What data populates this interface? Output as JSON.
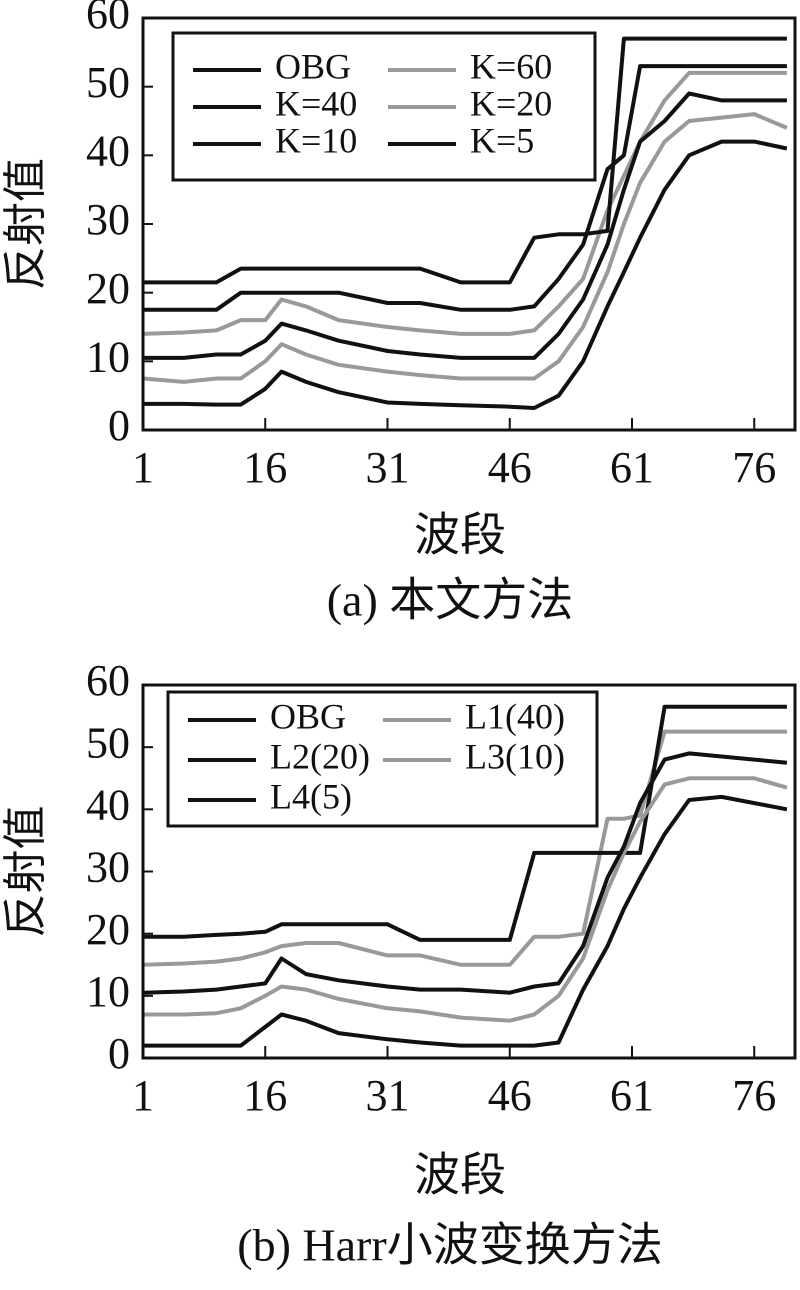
{
  "chart_data": [
    {
      "type": "line",
      "title": "(a) 本文方法",
      "x_label": "波段",
      "y_label": "反射值",
      "x": [
        1,
        6,
        10,
        13,
        16,
        18,
        21,
        25,
        31,
        35,
        40,
        46,
        49,
        52,
        55,
        58,
        60,
        62,
        65,
        68,
        72,
        76,
        80
      ],
      "xlim": [
        1,
        81
      ],
      "ylim": [
        0,
        60
      ],
      "xticks": [
        1,
        16,
        31,
        46,
        61,
        76
      ],
      "yticks": [
        0,
        10,
        20,
        30,
        40,
        50,
        60
      ],
      "series": [
        {
          "name": "OBG",
          "color": "#111111",
          "values": [
            3.8,
            3.8,
            3.7,
            3.7,
            6,
            8.5,
            7,
            5.5,
            4,
            3.8,
            3.6,
            3.4,
            3.2,
            5,
            10,
            18,
            23,
            28,
            35,
            40,
            42,
            42,
            41
          ]
        },
        {
          "name": "K=60",
          "color": "#999999",
          "values": [
            14,
            14.2,
            14.5,
            16,
            16,
            19,
            18,
            16,
            15,
            14.5,
            14,
            14,
            14.5,
            18,
            22,
            32,
            37,
            42,
            48,
            52,
            52,
            52,
            52
          ]
        },
        {
          "name": "K=40",
          "color": "#111111",
          "values": [
            10.5,
            10.5,
            11,
            11,
            13,
            15.5,
            14.5,
            13,
            11.5,
            11,
            10.5,
            10.5,
            10.5,
            14,
            19,
            27,
            35,
            42,
            45,
            49,
            48,
            48,
            48
          ]
        },
        {
          "name": "K=20",
          "color": "#999999",
          "values": [
            7.5,
            7,
            7.5,
            7.5,
            10,
            12.5,
            11,
            9.5,
            8.5,
            8,
            7.5,
            7.5,
            7.5,
            10,
            15,
            23,
            30,
            36,
            42,
            45,
            45.5,
            46,
            44
          ]
        },
        {
          "name": "K=10",
          "color": "#111111",
          "values": [
            17.5,
            17.5,
            17.5,
            20,
            20,
            20,
            20,
            20,
            18.5,
            18.5,
            17.5,
            17.5,
            18,
            22,
            27,
            38,
            40,
            53,
            53,
            53,
            53,
            53,
            53
          ]
        },
        {
          "name": "K=5",
          "color": "#111111",
          "values": [
            21.5,
            21.5,
            21.5,
            23.5,
            23.5,
            23.5,
            23.5,
            23.5,
            23.5,
            23.5,
            21.5,
            21.5,
            28,
            28.5,
            28.5,
            29,
            57,
            57,
            57,
            57,
            57,
            57,
            57
          ]
        }
      ]
    },
    {
      "type": "line",
      "title": "(b) Harr小波变换方法",
      "x_label": "波段",
      "y_label": "反射值",
      "x": [
        1,
        6,
        10,
        13,
        16,
        18,
        21,
        25,
        31,
        35,
        40,
        46,
        49,
        52,
        55,
        58,
        60,
        62,
        65,
        68,
        72,
        76,
        80
      ],
      "xlim": [
        1,
        81
      ],
      "ylim": [
        0,
        60
      ],
      "xticks": [
        1,
        16,
        31,
        46,
        61,
        76
      ],
      "yticks": [
        0,
        10,
        20,
        30,
        40,
        50,
        60
      ],
      "series": [
        {
          "name": "OBG",
          "color": "#111111",
          "values": [
            2,
            2,
            2,
            2,
            5,
            7,
            6,
            4,
            3,
            2.5,
            2,
            2,
            2,
            2.5,
            11,
            18,
            24,
            29,
            36,
            41.5,
            42,
            41,
            40
          ]
        },
        {
          "name": "L1(40)",
          "color": "#999999",
          "values": [
            15,
            15.2,
            15.5,
            16,
            17,
            18,
            18.5,
            18.5,
            16.5,
            16.5,
            15,
            15,
            19.5,
            19.5,
            20,
            38.5,
            38.5,
            39,
            52.5,
            52.5,
            52.5,
            52.5,
            52.5
          ]
        },
        {
          "name": "L2(20)",
          "color": "#111111",
          "values": [
            19.5,
            19.5,
            19.8,
            20,
            20.3,
            21.5,
            21.5,
            21.5,
            21.5,
            19,
            19,
            19,
            33,
            33,
            33,
            33,
            33,
            33,
            56.5,
            56.5,
            56.5,
            56.5,
            56.5
          ]
        },
        {
          "name": "L3(10)",
          "color": "#999999",
          "values": [
            7,
            7,
            7.2,
            8,
            10,
            11.5,
            11,
            9.5,
            8,
            7.5,
            6.5,
            6,
            7,
            10,
            16,
            27,
            33,
            38,
            44,
            45,
            45,
            45,
            43.5
          ]
        },
        {
          "name": "L4(5)",
          "color": "#111111",
          "values": [
            10.5,
            10.7,
            11,
            11.5,
            12,
            16,
            13.5,
            12.5,
            11.5,
            11,
            11,
            10.5,
            11.5,
            12,
            18,
            29,
            34,
            41,
            48,
            49,
            48.5,
            48,
            47.5
          ]
        }
      ]
    }
  ]
}
